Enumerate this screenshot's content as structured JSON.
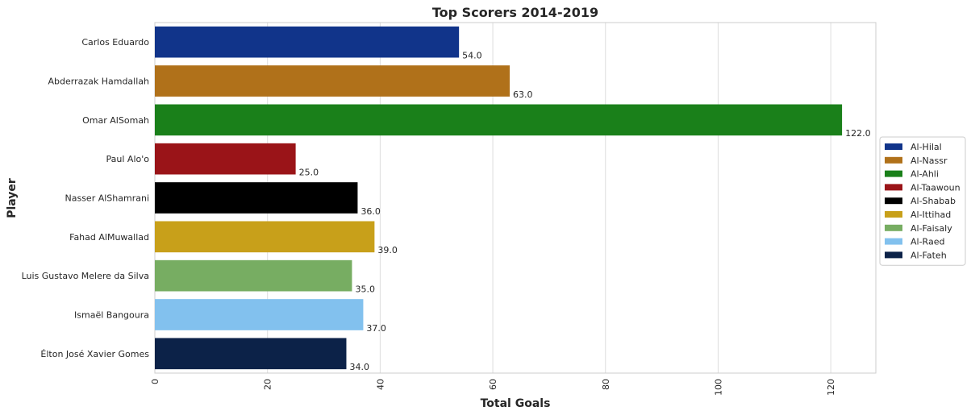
{
  "chart_data": {
    "type": "bar",
    "orientation": "horizontal",
    "title": "Top Scorers 2014-2019",
    "xlabel": "Total Goals",
    "ylabel": "Player",
    "xlim": [
      0,
      128
    ],
    "xticks": [
      0,
      20,
      40,
      60,
      80,
      100,
      120
    ],
    "grid": true,
    "legend_position": "center-right",
    "categories": [
      "Carlos Eduardo",
      "Abderrazak Hamdallah",
      "Omar AlSomah",
      "Paul Alo'o",
      "Nasser AlShamrani",
      "Fahad AlMuwallad",
      "Luis Gustavo Melere da Silva",
      "Ismaël Bangoura",
      "Élton José Xavier Gomes"
    ],
    "values": [
      54,
      63,
      122,
      25,
      36,
      39,
      35,
      37,
      34
    ],
    "value_labels": [
      "54.0",
      "63.0",
      "122.0",
      "25.0",
      "36.0",
      "39.0",
      "35.0",
      "37.0",
      "34.0"
    ],
    "teams": [
      "Al-Hilal",
      "Al-Nassr",
      "Al-Ahli",
      "Al-Taawoun",
      "Al-Shabab",
      "Al-Ittihad",
      "Al-Faisaly",
      "Al-Raed",
      "Al-Fateh"
    ],
    "colors": [
      "#11348a",
      "#b0711a",
      "#1a801a",
      "#9a1418",
      "#000000",
      "#c8a01a",
      "#77ad62",
      "#82c1ee",
      "#0c2248"
    ],
    "legend": [
      {
        "label": "Al-Hilal",
        "color": "#11348a"
      },
      {
        "label": "Al-Nassr",
        "color": "#b0711a"
      },
      {
        "label": "Al-Ahli",
        "color": "#1a801a"
      },
      {
        "label": "Al-Taawoun",
        "color": "#9a1418"
      },
      {
        "label": "Al-Shabab",
        "color": "#000000"
      },
      {
        "label": "Al-Ittihad",
        "color": "#c8a01a"
      },
      {
        "label": "Al-Faisaly",
        "color": "#77ad62"
      },
      {
        "label": "Al-Raed",
        "color": "#82c1ee"
      },
      {
        "label": "Al-Fateh",
        "color": "#0c2248"
      }
    ]
  }
}
